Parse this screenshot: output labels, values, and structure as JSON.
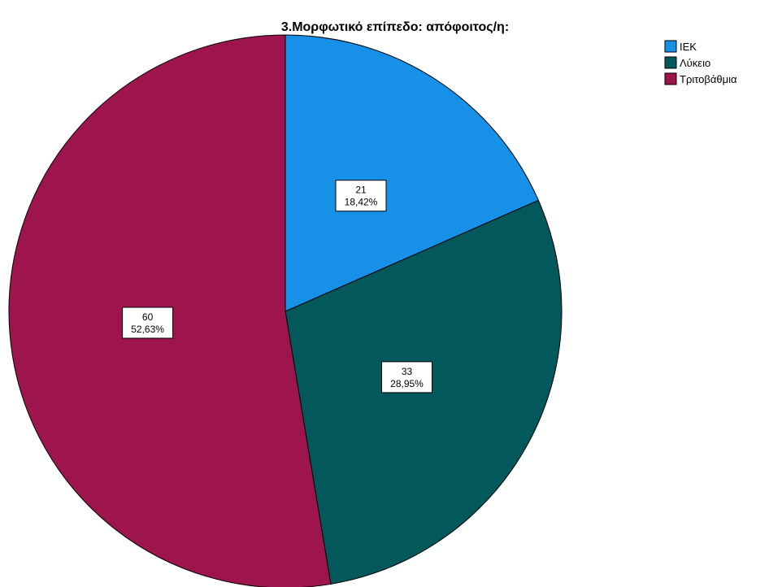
{
  "chart_data": {
    "type": "pie",
    "title": "3.Μορφωτικό επίπεδο: απόφοιτος/η:",
    "legend_position": "top-right",
    "slices": [
      {
        "label": "ΙΕΚ",
        "value": 21,
        "percent_label": "18,42%",
        "color": "#1791E8"
      },
      {
        "label": "Λύκειο",
        "value": 33,
        "percent_label": "28,95%",
        "color": "#03585C"
      },
      {
        "label": "Τριτοβάθμια",
        "value": 60,
        "percent_label": "52,63%",
        "color": "#9E154E"
      }
    ]
  }
}
